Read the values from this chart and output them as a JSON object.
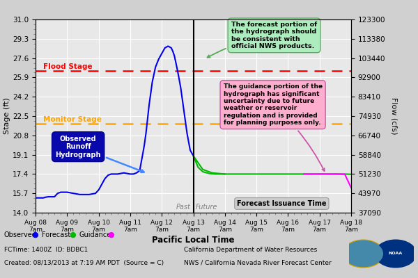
{
  "xlabel": "Pacific Local Time",
  "ylabel_left": "Stage (ft)",
  "ylabel_right": "Flow (cfs)",
  "ylim": [
    14.0,
    31.0
  ],
  "y_ticks_left": [
    14.0,
    15.7,
    17.4,
    19.1,
    20.8,
    22.5,
    24.2,
    25.9,
    27.6,
    29.3,
    31.0
  ],
  "y_ticks_right": [
    37090,
    43970,
    51230,
    58840,
    66740,
    74930,
    83410,
    92900,
    103440,
    113380,
    123300
  ],
  "flood_stage": 26.5,
  "monitor_stage": 21.85,
  "forecast_time_x": 5.0,
  "xlim": [
    0,
    10
  ],
  "x_tick_labels": [
    "Aug 08\n7am",
    "Aug 09\n7am",
    "Aug 10\n7am",
    "Aug 11\n7am",
    "Aug 12\n7am",
    "Aug 13\n7am",
    "Aug 14\n7am",
    "Aug 15\n7am",
    "Aug 16\n7am",
    "Aug 17\n7am",
    "Aug 18\n7am"
  ],
  "x_ticks": [
    0,
    1,
    2,
    3,
    4,
    5,
    6,
    7,
    8,
    9,
    10
  ],
  "observed_x": [
    0.0,
    0.05,
    0.1,
    0.15,
    0.2,
    0.25,
    0.3,
    0.4,
    0.5,
    0.6,
    0.7,
    0.8,
    0.9,
    1.0,
    1.1,
    1.2,
    1.3,
    1.4,
    1.5,
    1.6,
    1.7,
    1.8,
    1.9,
    2.0,
    2.1,
    2.2,
    2.3,
    2.4,
    2.5,
    2.6,
    2.7,
    2.8,
    2.9,
    3.0,
    3.1,
    3.2,
    3.3,
    3.4,
    3.45,
    3.5,
    3.6,
    3.7,
    3.8,
    3.9,
    4.0,
    4.1,
    4.2,
    4.3,
    4.35,
    4.4,
    4.5,
    4.6,
    4.7,
    4.8,
    4.9,
    5.0
  ],
  "observed_y": [
    15.3,
    15.3,
    15.3,
    15.3,
    15.3,
    15.3,
    15.35,
    15.4,
    15.4,
    15.4,
    15.7,
    15.8,
    15.8,
    15.8,
    15.75,
    15.7,
    15.65,
    15.6,
    15.6,
    15.6,
    15.6,
    15.65,
    15.7,
    16.0,
    16.5,
    17.0,
    17.3,
    17.4,
    17.4,
    17.4,
    17.45,
    17.5,
    17.45,
    17.4,
    17.4,
    17.5,
    17.7,
    19.2,
    20.0,
    21.0,
    23.5,
    25.5,
    26.8,
    27.5,
    28.0,
    28.5,
    28.65,
    28.5,
    28.2,
    27.8,
    26.5,
    25.0,
    23.0,
    21.0,
    19.5,
    19.0
  ],
  "forecast_x": [
    5.0,
    5.15,
    5.3,
    5.5,
    5.7,
    5.9,
    6.0
  ],
  "forecast_y": [
    19.0,
    18.0,
    17.6,
    17.45,
    17.4,
    17.4,
    17.4
  ],
  "guidance_x": [
    5.0,
    5.3,
    5.6,
    6.0,
    6.5,
    7.0,
    7.5,
    8.0,
    8.5,
    9.0,
    9.5,
    9.8,
    10.0
  ],
  "guidance_y": [
    19.0,
    17.8,
    17.5,
    17.4,
    17.4,
    17.4,
    17.4,
    17.4,
    17.4,
    17.4,
    17.4,
    17.4,
    17.38
  ],
  "magenta_x": [
    8.5,
    9.0,
    9.5,
    9.8,
    10.0
  ],
  "magenta_y": [
    17.4,
    17.4,
    17.4,
    17.38,
    16.2
  ],
  "bg_color": "#d0d0d0",
  "plot_bg_color": "#e8e8e8",
  "grid_color": "#ffffff",
  "observed_color": "#0000ee",
  "forecast_color": "#00bb00",
  "guidance_color": "#ff00ff",
  "flood_color": "#ff0000",
  "monitor_color": "#ffa500",
  "annotation_green_bg": "#aaeebb",
  "annotation_pink_bg": "#ffaacc",
  "annotation_gray_bg": "#cccccc",
  "obs_box_color": "#0000aa",
  "observed_label": "Observed",
  "forecast_label": "Forecast",
  "guidance_label": "Guidance",
  "fctime_text": "FCTime: 1400Z  ID: BDBC1",
  "created_text": "Created: 08/13/2013 at 7:19 AM PDT  (Source = C)",
  "right_text1": "California Department of Water Resources",
  "right_text2": "NWS / California Nevada River Forecast Center"
}
